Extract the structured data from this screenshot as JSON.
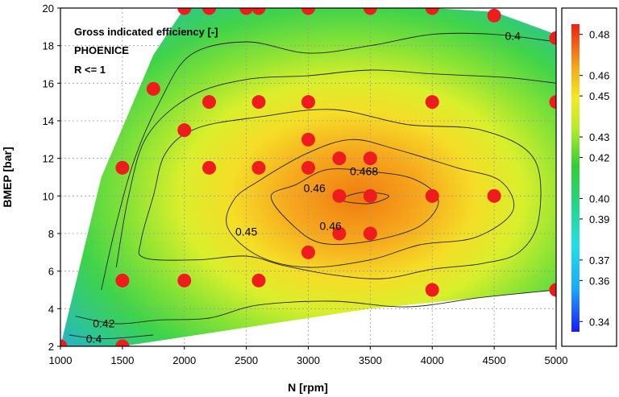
{
  "chart_data": {
    "type": "heatmap",
    "subtype": "contour-map with operating points",
    "xlabel": "N [rpm]",
    "ylabel": "BMEP [bar]",
    "xlim": [
      1000,
      5000
    ],
    "ylim": [
      2,
      20
    ],
    "x_ticks": [
      1000,
      1500,
      2000,
      2500,
      3000,
      3500,
      4000,
      4500,
      5000
    ],
    "y_ticks": [
      2,
      4,
      6,
      8,
      10,
      12,
      14,
      16,
      18,
      20
    ],
    "grid": true,
    "annotations": [
      "Gross indicated efficiency [-]",
      "PHOENICE",
      "R <= 1"
    ],
    "colorbar": {
      "range": [
        0.335,
        0.485
      ],
      "ticks": [
        "0.34",
        "0.36",
        "0.37",
        "0.39",
        "0.40",
        "0.42",
        "0.43",
        "0.45",
        "0.46",
        "0.48"
      ]
    },
    "contour_labels": [
      {
        "text": "0.4",
        "x": 4650,
        "y": 18.3
      },
      {
        "text": "0.46",
        "x": 3050,
        "y": 10.2
      },
      {
        "text": "0.468",
        "x": 3450,
        "y": 11.1
      },
      {
        "text": "0.46",
        "x": 3180,
        "y": 8.2
      },
      {
        "text": "0.45",
        "x": 2500,
        "y": 7.9
      },
      {
        "text": "0.42",
        "x": 1350,
        "y": 3.0
      },
      {
        "text": "0.4",
        "x": 1270,
        "y": 2.2
      }
    ],
    "points": [
      {
        "x": 1000,
        "y": 2
      },
      {
        "x": 1500,
        "y": 2
      },
      {
        "x": 1500,
        "y": 5.5
      },
      {
        "x": 1500,
        "y": 11.5
      },
      {
        "x": 1750,
        "y": 15.7
      },
      {
        "x": 2000,
        "y": 13.5
      },
      {
        "x": 2000,
        "y": 5.5
      },
      {
        "x": 2000,
        "y": 20
      },
      {
        "x": 2200,
        "y": 20
      },
      {
        "x": 2200,
        "y": 15
      },
      {
        "x": 2200,
        "y": 11.5
      },
      {
        "x": 2500,
        "y": 20
      },
      {
        "x": 2600,
        "y": 20
      },
      {
        "x": 2600,
        "y": 15
      },
      {
        "x": 2600,
        "y": 11.5
      },
      {
        "x": 2600,
        "y": 5.5
      },
      {
        "x": 3000,
        "y": 20
      },
      {
        "x": 3000,
        "y": 15
      },
      {
        "x": 3000,
        "y": 13
      },
      {
        "x": 3000,
        "y": 11.5
      },
      {
        "x": 3000,
        "y": 7
      },
      {
        "x": 3250,
        "y": 12
      },
      {
        "x": 3250,
        "y": 10
      },
      {
        "x": 3250,
        "y": 8
      },
      {
        "x": 3500,
        "y": 20
      },
      {
        "x": 3500,
        "y": 12
      },
      {
        "x": 3500,
        "y": 10
      },
      {
        "x": 3500,
        "y": 8
      },
      {
        "x": 4000,
        "y": 20
      },
      {
        "x": 4000,
        "y": 15
      },
      {
        "x": 4000,
        "y": 10
      },
      {
        "x": 4000,
        "y": 5
      },
      {
        "x": 4500,
        "y": 19.6
      },
      {
        "x": 4500,
        "y": 10
      },
      {
        "x": 5000,
        "y": 18.4
      },
      {
        "x": 5000,
        "y": 15
      },
      {
        "x": 5000,
        "y": 5
      }
    ],
    "boundary": [
      [
        1000,
        2
      ],
      [
        1330,
        11
      ],
      [
        1750,
        17.5
      ],
      [
        2000,
        20
      ],
      [
        4000,
        20
      ],
      [
        4500,
        19.8
      ],
      [
        5000,
        18.6
      ],
      [
        5000,
        5
      ],
      [
        3500,
        4
      ],
      [
        1500,
        2
      ]
    ],
    "contours": [
      {
        "level": "0.468",
        "points": [
          [
            3280,
            9.9
          ],
          [
            3450,
            10.2
          ],
          [
            3650,
            10.0
          ],
          [
            3500,
            9.6
          ],
          [
            3300,
            9.7
          ]
        ]
      },
      {
        "level": "0.46",
        "points": [
          [
            2900,
            10.6
          ],
          [
            3150,
            11.4
          ],
          [
            3500,
            11.3
          ],
          [
            3850,
            10.9
          ],
          [
            4050,
            9.8
          ],
          [
            3900,
            8.4
          ],
          [
            3500,
            7.6
          ],
          [
            3100,
            7.5
          ],
          [
            2850,
            8.6
          ],
          [
            2700,
            10.0
          ]
        ]
      },
      {
        "level": "0.45",
        "points": [
          [
            2600,
            10.8
          ],
          [
            3000,
            12.3
          ],
          [
            3350,
            13.0
          ],
          [
            3700,
            12.5
          ],
          [
            4200,
            11.5
          ],
          [
            4550,
            10.8
          ],
          [
            4650,
            9.2
          ],
          [
            4350,
            7.8
          ],
          [
            3900,
            7.4
          ],
          [
            3500,
            6.6
          ],
          [
            3000,
            6.2
          ],
          [
            2600,
            6.8
          ],
          [
            2350,
            8.3
          ],
          [
            2400,
            9.8
          ]
        ]
      },
      {
        "level": "0.43",
        "points": [
          [
            1680,
            6.7
          ],
          [
            2100,
            6.6
          ],
          [
            2500,
            6.8
          ],
          [
            2800,
            6.3
          ],
          [
            3200,
            5.8
          ],
          [
            3600,
            5.6
          ],
          [
            4000,
            6.1
          ],
          [
            4400,
            6.4
          ],
          [
            4700,
            7.0
          ],
          [
            4860,
            8.8
          ],
          [
            4820,
            12.0
          ],
          [
            4400,
            13.5
          ],
          [
            3800,
            13.8
          ],
          [
            3200,
            14.6
          ],
          [
            2600,
            14.2
          ],
          [
            2100,
            13.6
          ],
          [
            1850,
            12.3
          ],
          [
            1750,
            10.0
          ],
          [
            1650,
            7.6
          ]
        ]
      },
      {
        "level": "0.42",
        "points": [
          [
            1450,
            6.2
          ],
          [
            1550,
            10.0
          ],
          [
            1700,
            13.2
          ],
          [
            2050,
            15.3
          ],
          [
            2500,
            16.2
          ],
          [
            3000,
            16.4
          ],
          [
            3500,
            16.7
          ],
          [
            4000,
            16.5
          ],
          [
            4600,
            16.3
          ],
          [
            5000,
            16.0
          ]
        ]
      },
      {
        "level": "0.40",
        "points": [
          [
            1330,
            5.0
          ],
          [
            1450,
            8.5
          ],
          [
            1600,
            12.0
          ],
          [
            1800,
            15.0
          ],
          [
            2050,
            17.5
          ],
          [
            2500,
            18.2
          ],
          [
            3000,
            17.6
          ],
          [
            3500,
            18.0
          ],
          [
            4000,
            18.6
          ],
          [
            4500,
            18.6
          ],
          [
            5000,
            18.2
          ]
        ]
      },
      {
        "level": "0.42-low",
        "points": [
          [
            1120,
            3.6
          ],
          [
            1450,
            3.2
          ],
          [
            1800,
            3.4
          ],
          [
            2200,
            3.5
          ],
          [
            2600,
            4.2
          ],
          [
            3200,
            4.4
          ],
          [
            3800,
            4.1
          ],
          [
            4400,
            4.6
          ],
          [
            5000,
            5.0
          ]
        ]
      },
      {
        "level": "0.40-low",
        "points": [
          [
            1070,
            2.6
          ],
          [
            1350,
            2.4
          ],
          [
            1750,
            2.6
          ]
        ]
      }
    ]
  }
}
